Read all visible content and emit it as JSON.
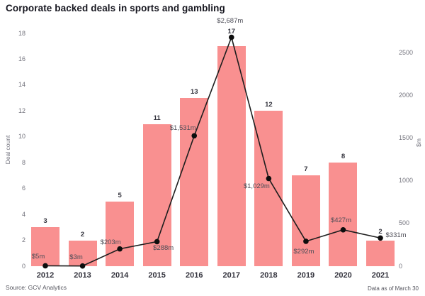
{
  "title": "Corporate backed deals in sports and gambling",
  "footer": {
    "source": "Source: GCV Analytics",
    "note": "Data as of March 30"
  },
  "colors": {
    "bar": "#f99090",
    "line": "#1e1e1e",
    "dot": "#0d0d0d",
    "title": "#16161f",
    "tick": "#74747e",
    "count_label": "#33333d",
    "value_label": "#4d4d57"
  },
  "chart_data": {
    "type": "bar+line",
    "title": "Corporate backed deals in sports and gambling",
    "categories": [
      "2012",
      "2013",
      "2014",
      "2015",
      "2016",
      "2017",
      "2018",
      "2019",
      "2020",
      "2021"
    ],
    "series": [
      {
        "name": "Deal count",
        "type": "bar",
        "axis": "left",
        "values": [
          3,
          2,
          5,
          11,
          13,
          17,
          12,
          7,
          8,
          2
        ]
      },
      {
        "name": "Deal value ($m)",
        "type": "line",
        "axis": "right",
        "values": [
          5,
          3,
          203,
          288,
          1531,
          2687,
          1029,
          292,
          427,
          331
        ],
        "point_labels": [
          "$5m",
          "$3m",
          "$203m",
          "$288m",
          "$1,531m",
          "$2,687m",
          "$1,029m",
          "$292m",
          "$427m",
          "$331m"
        ],
        "label_offsets": [
          {
            "dx": -10,
            "dy": -12
          },
          {
            "dx": -9,
            "dy": -12
          },
          {
            "dx": -13,
            "dy": -9
          },
          {
            "dx": 9,
            "dy": 10
          },
          {
            "dx": -16,
            "dy": -10
          },
          {
            "dx": -2,
            "dy": -23
          },
          {
            "dx": -17,
            "dy": 11
          },
          {
            "dx": -3,
            "dy": 15
          },
          {
            "dx": -3,
            "dy": -13
          },
          {
            "dx": 22,
            "dy": -3
          }
        ]
      }
    ],
    "left_axis": {
      "label": "Deal count",
      "ticks": [
        0,
        2,
        4,
        6,
        8,
        10,
        12,
        14,
        16,
        18
      ],
      "range": [
        0,
        18
      ]
    },
    "right_axis": {
      "label": "$m",
      "ticks": [
        0,
        500,
        1000,
        1500,
        2000,
        2500
      ],
      "range": [
        0,
        2733
      ]
    },
    "grid": false,
    "legend": "none"
  }
}
